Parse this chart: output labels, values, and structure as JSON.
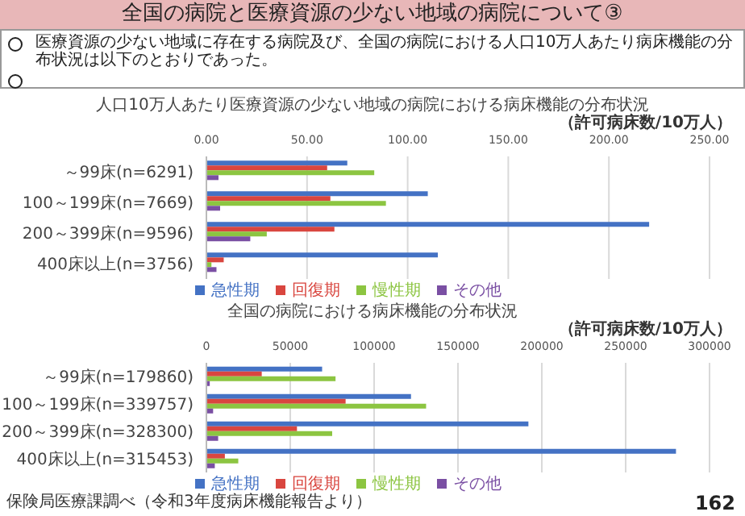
{
  "chart_data": [
    {
      "type": "bar",
      "orientation": "horizontal",
      "title": "人口10万人あたり医療資源の少ない地域の病院における病床機能の分布状況",
      "xlabel": "（許可病床数/10万人）",
      "annotations": [
        "全国の病院と医療資源の少ない地域の病院について③",
        "医療資源の少ない地域に存在する病院及び、全国の病院における人口10万人あたり病床機能の分布状況は以下のとおりであった。"
      ],
      "categories": [
        "～99床(n=6291)",
        "100～199床(n=7669)",
        "200～399床(n=9596)",
        "400床以上(n=3756)"
      ],
      "series": [
        {
          "name": "急性期",
          "color": "#4472c4",
          "values": [
            70,
            110,
            220,
            115
          ]
        },
        {
          "name": "回復期",
          "color": "#d9463f",
          "values": [
            60,
            61.6,
            63.6,
            8.6
          ]
        },
        {
          "name": "慢性期",
          "color": "#8cc541",
          "values": [
            83.4,
            89.2,
            30,
            2.5
          ]
        },
        {
          "name": "その他",
          "color": "#7a4fa3",
          "values": [
            6,
            6.8,
            21.8,
            5
          ]
        }
      ],
      "xlim": [
        0,
        250
      ],
      "xticks": [
        {
          "value": 0,
          "label": "0.00"
        },
        {
          "value": 50,
          "label": "50.00"
        },
        {
          "value": 100,
          "label": "100.00"
        },
        {
          "value": 150,
          "label": "150.00"
        },
        {
          "value": 200,
          "label": "200.00"
        },
        {
          "value": 250,
          "label": "250.00"
        }
      ],
      "grid": "x",
      "legend": "bottom"
    },
    {
      "type": "bar",
      "orientation": "horizontal",
      "title": "全国の病院における病床機能の分布状況",
      "xlabel": "（許可病床数/10万人）",
      "annotations": [
        "保険局医療課調べ（令和3年度病床機能報告より）",
        "162"
      ],
      "categories": [
        "～99床(n=179860)",
        "100～199床(n=339757)",
        "200～399床(n=328300)",
        "400床以上(n=315453)"
      ],
      "series": [
        {
          "name": "急性期",
          "color": "#4472c4",
          "values": [
            69000,
            122000,
            192000,
            280000
          ]
        },
        {
          "name": "回復期",
          "color": "#d9463f",
          "values": [
            33000,
            83000,
            54000,
            11000
          ]
        },
        {
          "name": "慢性期",
          "color": "#8cc541",
          "values": [
            77000,
            131000,
            75000,
            19000
          ]
        },
        {
          "name": "その他",
          "color": "#7a4fa3",
          "values": [
            2000,
            4000,
            7000,
            5000
          ]
        }
      ],
      "xlim": [
        0,
        300000
      ],
      "xticks": [
        0,
        50000,
        100000,
        150000,
        200000,
        250000,
        300000
      ],
      "grid": "x",
      "legend": "bottom"
    }
  ]
}
